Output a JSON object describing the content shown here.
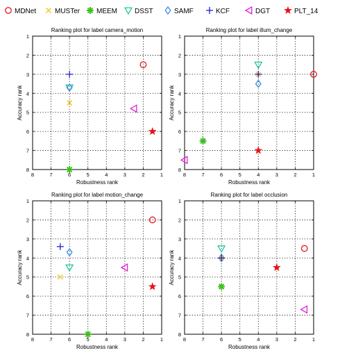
{
  "legend": [
    {
      "name": "MDNet",
      "marker": "circle",
      "color": "#e8141b"
    },
    {
      "name": "MUSTer",
      "marker": "x",
      "color": "#f2c318"
    },
    {
      "name": "MEEM",
      "marker": "asterisk",
      "color": "#3fbf1f"
    },
    {
      "name": "DSST",
      "marker": "tri-down",
      "color": "#1fc9a2"
    },
    {
      "name": "SAMF",
      "marker": "diamond",
      "color": "#3a8ee0"
    },
    {
      "name": "KCF",
      "marker": "plus",
      "color": "#1f1fd0"
    },
    {
      "name": "DGT",
      "marker": "tri-left",
      "color": "#e41fd8"
    },
    {
      "name": "PLT_14",
      "marker": "star",
      "color": "#e8141b"
    }
  ],
  "chart_data": [
    {
      "type": "scatter",
      "title": "Ranking plot for label camera_motion",
      "xlabel": "Robustness rank",
      "ylabel": "Accuracy rank",
      "xlim": [
        8,
        1
      ],
      "ylim": [
        8,
        1
      ],
      "x_ticks": [
        "8",
        "7",
        "6",
        "5",
        "4",
        "3",
        "2",
        "1"
      ],
      "y_ticks": [
        "1",
        "2",
        "3",
        "4",
        "5",
        "6",
        "7",
        "8"
      ],
      "grid": true,
      "points": [
        {
          "series": "MDNet",
          "x": 2.0,
          "y": 2.5
        },
        {
          "series": "MUSTer",
          "x": 6.0,
          "y": 4.5
        },
        {
          "series": "MEEM",
          "x": 6.0,
          "y": 8.0
        },
        {
          "series": "DSST",
          "x": 6.0,
          "y": 3.7
        },
        {
          "series": "SAMF",
          "x": 6.0,
          "y": 3.7
        },
        {
          "series": "KCF",
          "x": 6.0,
          "y": 3.0
        },
        {
          "series": "DGT",
          "x": 2.5,
          "y": 4.8
        },
        {
          "series": "PLT_14",
          "x": 1.5,
          "y": 6.0
        }
      ]
    },
    {
      "type": "scatter",
      "title": "Ranking plot for label illum_change",
      "xlabel": "Robustness rank",
      "ylabel": "Accuracy rank",
      "xlim": [
        8,
        1
      ],
      "ylim": [
        8,
        1
      ],
      "x_ticks": [
        "8",
        "7",
        "6",
        "5",
        "4",
        "3",
        "2",
        "1"
      ],
      "y_ticks": [
        "1",
        "2",
        "3",
        "4",
        "5",
        "6",
        "7",
        "8"
      ],
      "grid": true,
      "points": [
        {
          "series": "MDNet",
          "x": 1.0,
          "y": 3.0
        },
        {
          "series": "MUSTer",
          "x": 4.0,
          "y": 3.0
        },
        {
          "series": "MEEM",
          "x": 7.0,
          "y": 6.5
        },
        {
          "series": "DSST",
          "x": 4.0,
          "y": 2.5
        },
        {
          "series": "SAMF",
          "x": 4.0,
          "y": 3.5
        },
        {
          "series": "KCF",
          "x": 4.0,
          "y": 3.0
        },
        {
          "series": "DGT",
          "x": 8.0,
          "y": 7.5
        },
        {
          "series": "PLT_14",
          "x": 4.0,
          "y": 7.0
        }
      ]
    },
    {
      "type": "scatter",
      "title": "Ranking plot for label motion_change",
      "xlabel": "Robustness rank",
      "ylabel": "Accuracy rank",
      "xlim": [
        8,
        1
      ],
      "ylim": [
        8,
        1
      ],
      "x_ticks": [
        "8",
        "7",
        "6",
        "5",
        "4",
        "3",
        "2",
        "1"
      ],
      "y_ticks": [
        "1",
        "2",
        "3",
        "4",
        "5",
        "6",
        "7",
        "8"
      ],
      "grid": true,
      "points": [
        {
          "series": "MDNet",
          "x": 1.5,
          "y": 2.0
        },
        {
          "series": "MUSTer",
          "x": 6.5,
          "y": 5.0
        },
        {
          "series": "MEEM",
          "x": 5.0,
          "y": 8.0
        },
        {
          "series": "DSST",
          "x": 6.0,
          "y": 4.5
        },
        {
          "series": "SAMF",
          "x": 6.0,
          "y": 3.7
        },
        {
          "series": "KCF",
          "x": 6.5,
          "y": 3.4
        },
        {
          "series": "DGT",
          "x": 3.0,
          "y": 4.5
        },
        {
          "series": "PLT_14",
          "x": 1.5,
          "y": 5.5
        }
      ]
    },
    {
      "type": "scatter",
      "title": "Ranking plot for label occlusion",
      "xlabel": "Robustness rank",
      "ylabel": "Accuracy rank",
      "xlim": [
        8,
        1
      ],
      "ylim": [
        8,
        1
      ],
      "x_ticks": [
        "8",
        "7",
        "6",
        "5",
        "4",
        "3",
        "2",
        "1"
      ],
      "y_ticks": [
        "1",
        "2",
        "3",
        "4",
        "5",
        "6",
        "7",
        "8"
      ],
      "grid": true,
      "points": [
        {
          "series": "MDNet",
          "x": 1.5,
          "y": 3.5
        },
        {
          "series": "MUSTer",
          "x": 6.0,
          "y": 4.0
        },
        {
          "series": "MEEM",
          "x": 6.0,
          "y": 5.5
        },
        {
          "series": "DSST",
          "x": 6.0,
          "y": 3.5
        },
        {
          "series": "SAMF",
          "x": 6.0,
          "y": 4.0
        },
        {
          "series": "KCF",
          "x": 6.0,
          "y": 4.0
        },
        {
          "series": "DGT",
          "x": 1.5,
          "y": 6.7
        },
        {
          "series": "PLT_14",
          "x": 3.0,
          "y": 4.5
        }
      ]
    }
  ]
}
